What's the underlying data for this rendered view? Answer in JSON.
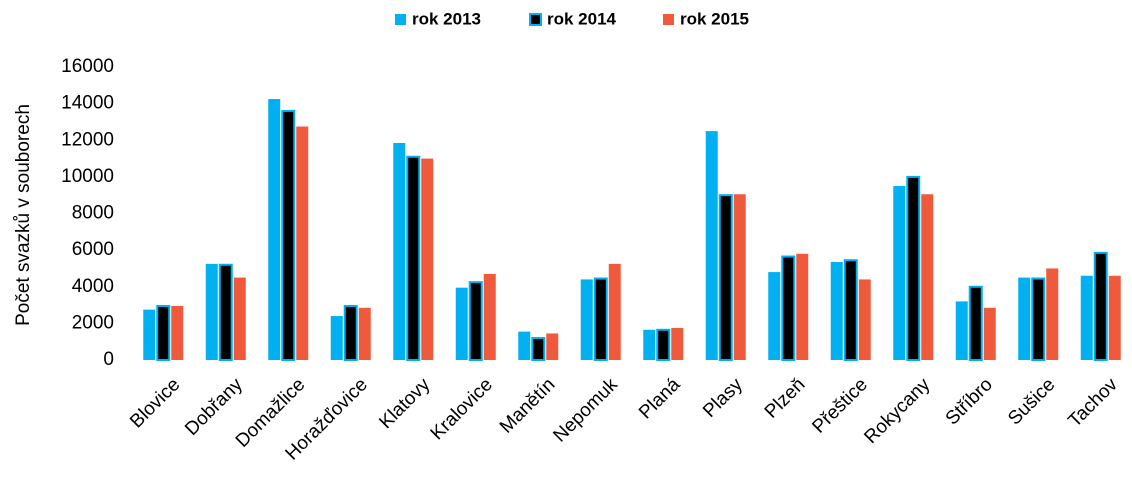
{
  "chart_data": {
    "type": "bar",
    "ylabel": "Počet svazků v souborech",
    "categories": [
      "Blovice",
      "Dobřany",
      "Domažlice",
      "Horažďovice",
      "Klatovy",
      "Kralovice",
      "Manětín",
      "Nepomuk",
      "Planá",
      "Plasy",
      "Plzeň",
      "Přeštice",
      "Rokycany",
      "Stříbro",
      "Sušice",
      "Tachov"
    ],
    "series": [
      {
        "name": "rok 2013",
        "color": "#00b0f0",
        "values": [
          2750,
          5250,
          14250,
          2400,
          11850,
          3950,
          1550,
          4400,
          1650,
          12500,
          4800,
          5350,
          9500,
          3200,
          4500,
          4600
        ]
      },
      {
        "name": "rok 2014",
        "color": "#000000",
        "edgecolor": "#00b0f0",
        "values": [
          2950,
          5200,
          13600,
          2950,
          11100,
          4250,
          1200,
          4450,
          1650,
          9000,
          5650,
          5450,
          10000,
          4000,
          4450,
          5850
        ]
      },
      {
        "name": "rok 2015",
        "color": "#f05a3c",
        "values": [
          2950,
          4500,
          12750,
          2850,
          11000,
          4700,
          1450,
          5250,
          1750,
          9050,
          5800,
          4400,
          9050,
          2850,
          5000,
          4600
        ]
      }
    ],
    "ylim": [
      0,
      16000
    ],
    "yticks": [
      0,
      2000,
      4000,
      6000,
      8000,
      10000,
      12000,
      14000,
      16000
    ],
    "legend": "top",
    "grid": false
  }
}
